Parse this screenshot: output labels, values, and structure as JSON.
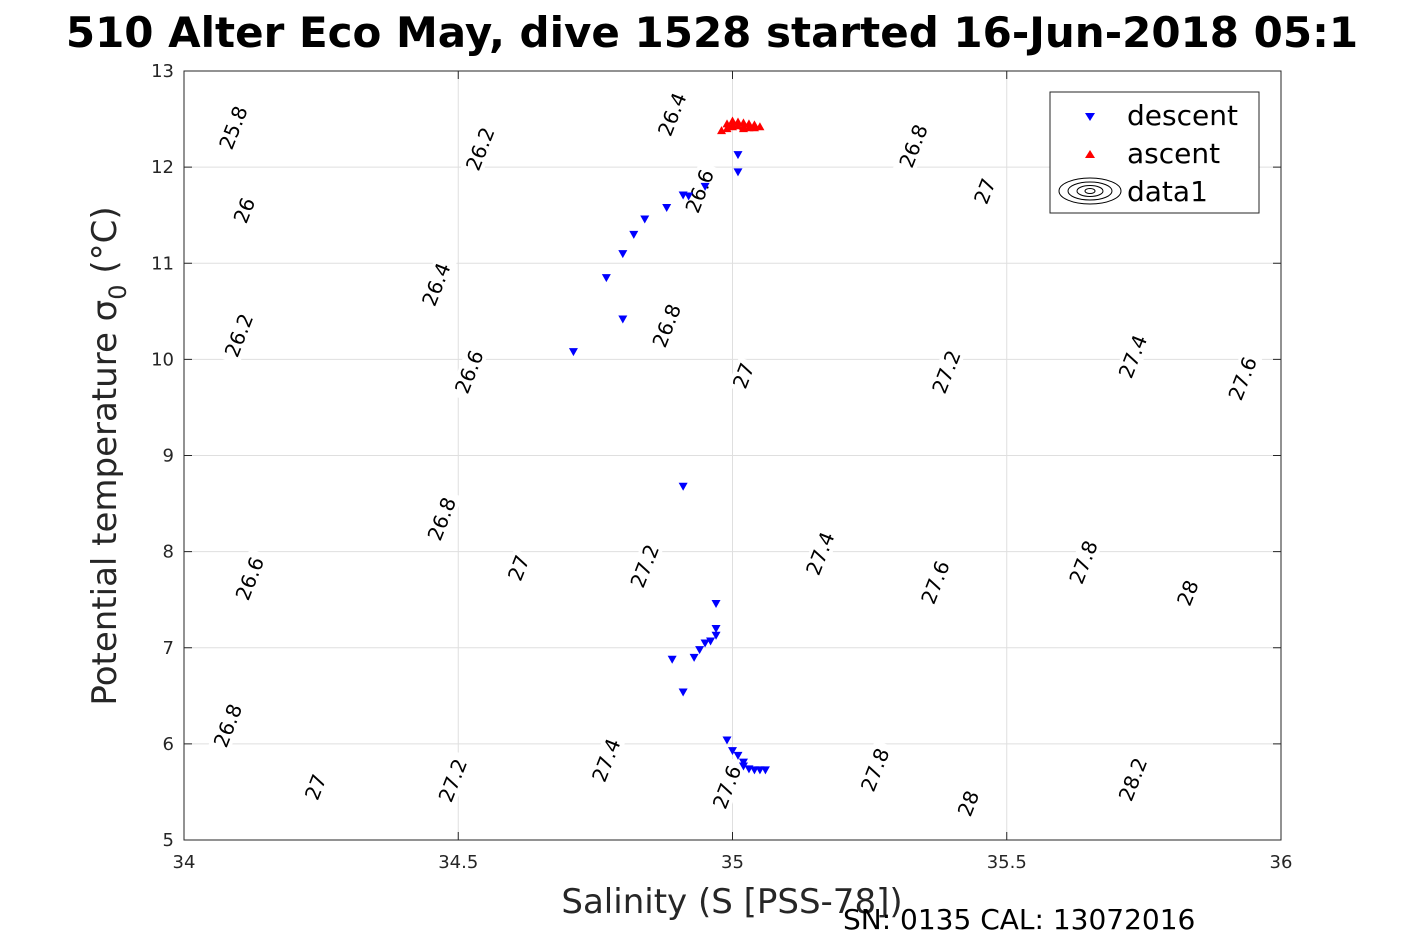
{
  "chart_data": {
    "type": "scatter",
    "title": "510 Alter Eco May, dive 1528 started 16-Jun-2018 05:1",
    "xlabel": "Salinity (S [PSS-78])",
    "ylabel": "Potential temperature σ",
    "ylabel_sub": "0",
    "ylabel_unit": " (°C)",
    "xlim": [
      34,
      36
    ],
    "ylim": [
      5,
      13
    ],
    "xticks": [
      34,
      34.5,
      35,
      35.5,
      36
    ],
    "xtick_labels": [
      "34",
      "34.5",
      "35",
      "35.5",
      "36"
    ],
    "yticks": [
      5,
      6,
      7,
      8,
      9,
      10,
      11,
      12,
      13
    ],
    "ytick_labels": [
      "5",
      "6",
      "7",
      "8",
      "9",
      "10",
      "11",
      "12",
      "13"
    ],
    "grid": true,
    "legend_position": "top-right",
    "series": [
      {
        "name": "descent",
        "marker": "triangle-down",
        "color": "#0000ff",
        "points": [
          [
            34.71,
            10.08
          ],
          [
            34.8,
            10.42
          ],
          [
            34.77,
            10.85
          ],
          [
            34.8,
            11.1
          ],
          [
            34.82,
            11.3
          ],
          [
            34.84,
            11.46
          ],
          [
            34.88,
            11.58
          ],
          [
            34.91,
            11.71
          ],
          [
            34.92,
            11.7
          ],
          [
            34.95,
            11.8
          ],
          [
            35.01,
            12.13
          ],
          [
            35.01,
            11.95
          ],
          [
            34.91,
            8.68
          ],
          [
            34.97,
            7.46
          ],
          [
            34.97,
            7.2
          ],
          [
            34.97,
            7.13
          ],
          [
            34.96,
            7.07
          ],
          [
            34.95,
            7.05
          ],
          [
            34.94,
            6.98
          ],
          [
            34.93,
            6.9
          ],
          [
            34.89,
            6.88
          ],
          [
            34.91,
            6.54
          ],
          [
            34.99,
            6.04
          ],
          [
            35.0,
            5.93
          ],
          [
            35.01,
            5.88
          ],
          [
            35.02,
            5.81
          ],
          [
            35.02,
            5.77
          ],
          [
            35.03,
            5.74
          ],
          [
            35.04,
            5.73
          ],
          [
            35.05,
            5.73
          ],
          [
            35.06,
            5.73
          ]
        ]
      },
      {
        "name": "ascent",
        "marker": "triangle-up",
        "color": "#ff0000",
        "points": [
          [
            34.98,
            12.38
          ],
          [
            34.99,
            12.4
          ],
          [
            34.99,
            12.45
          ],
          [
            35.0,
            12.48
          ],
          [
            35.0,
            12.42
          ],
          [
            35.01,
            12.47
          ],
          [
            35.01,
            12.43
          ],
          [
            35.02,
            12.46
          ],
          [
            35.02,
            12.42
          ],
          [
            35.03,
            12.45
          ],
          [
            35.03,
            12.41
          ],
          [
            35.04,
            12.44
          ],
          [
            35.04,
            12.41
          ],
          [
            35.05,
            12.42
          ],
          [
            35.0,
            12.44
          ],
          [
            35.02,
            12.4
          ]
        ]
      },
      {
        "name": "data1",
        "type": "contour",
        "variable": "sigma0",
        "levels": [
          25.8,
          26,
          26.2,
          26.4,
          26.6,
          26.8,
          27,
          27.2,
          27.4,
          27.6,
          27.8,
          28,
          28.2
        ],
        "labels": [
          {
            "text": "25.8",
            "s": 34.09,
            "t": 12.41
          },
          {
            "text": "26.2",
            "s": 34.54,
            "t": 12.19
          },
          {
            "text": "26.4",
            "s": 34.89,
            "t": 12.55
          },
          {
            "text": "26",
            "s": 34.11,
            "t": 11.55
          },
          {
            "text": "26.6",
            "s": 34.94,
            "t": 11.75
          },
          {
            "text": "26.8",
            "s": 35.33,
            "t": 12.22
          },
          {
            "text": "27",
            "s": 35.46,
            "t": 11.75
          },
          {
            "text": "26.4",
            "s": 34.46,
            "t": 10.78
          },
          {
            "text": "26.2",
            "s": 34.1,
            "t": 10.25
          },
          {
            "text": "26.8",
            "s": 34.88,
            "t": 10.35
          },
          {
            "text": "26.6",
            "s": 34.52,
            "t": 9.87
          },
          {
            "text": "27",
            "s": 35.02,
            "t": 9.83
          },
          {
            "text": "27.2",
            "s": 35.39,
            "t": 9.87
          },
          {
            "text": "27.4",
            "s": 35.73,
            "t": 10.03
          },
          {
            "text": "27.6",
            "s": 35.93,
            "t": 9.8
          },
          {
            "text": "26.8",
            "s": 34.47,
            "t": 8.34
          },
          {
            "text": "26.6",
            "s": 34.12,
            "t": 7.72
          },
          {
            "text": "27",
            "s": 34.61,
            "t": 7.83
          },
          {
            "text": "27.2",
            "s": 34.84,
            "t": 7.85
          },
          {
            "text": "27.4",
            "s": 35.16,
            "t": 7.98
          },
          {
            "text": "27.6",
            "s": 35.37,
            "t": 7.68
          },
          {
            "text": "27.8",
            "s": 35.64,
            "t": 7.89
          },
          {
            "text": "28",
            "s": 35.83,
            "t": 7.57
          },
          {
            "text": "26.8",
            "s": 34.08,
            "t": 6.19
          },
          {
            "text": "27",
            "s": 34.24,
            "t": 5.55
          },
          {
            "text": "27.2",
            "s": 34.49,
            "t": 5.62
          },
          {
            "text": "27.4",
            "s": 34.77,
            "t": 5.83
          },
          {
            "text": "27.6",
            "s": 34.99,
            "t": 5.55
          },
          {
            "text": "27.8",
            "s": 35.26,
            "t": 5.73
          },
          {
            "text": "28",
            "s": 35.43,
            "t": 5.38
          },
          {
            "text": "28.2",
            "s": 35.73,
            "t": 5.63
          }
        ]
      }
    ]
  },
  "footer": "SN: 0135  CAL: 13072016"
}
